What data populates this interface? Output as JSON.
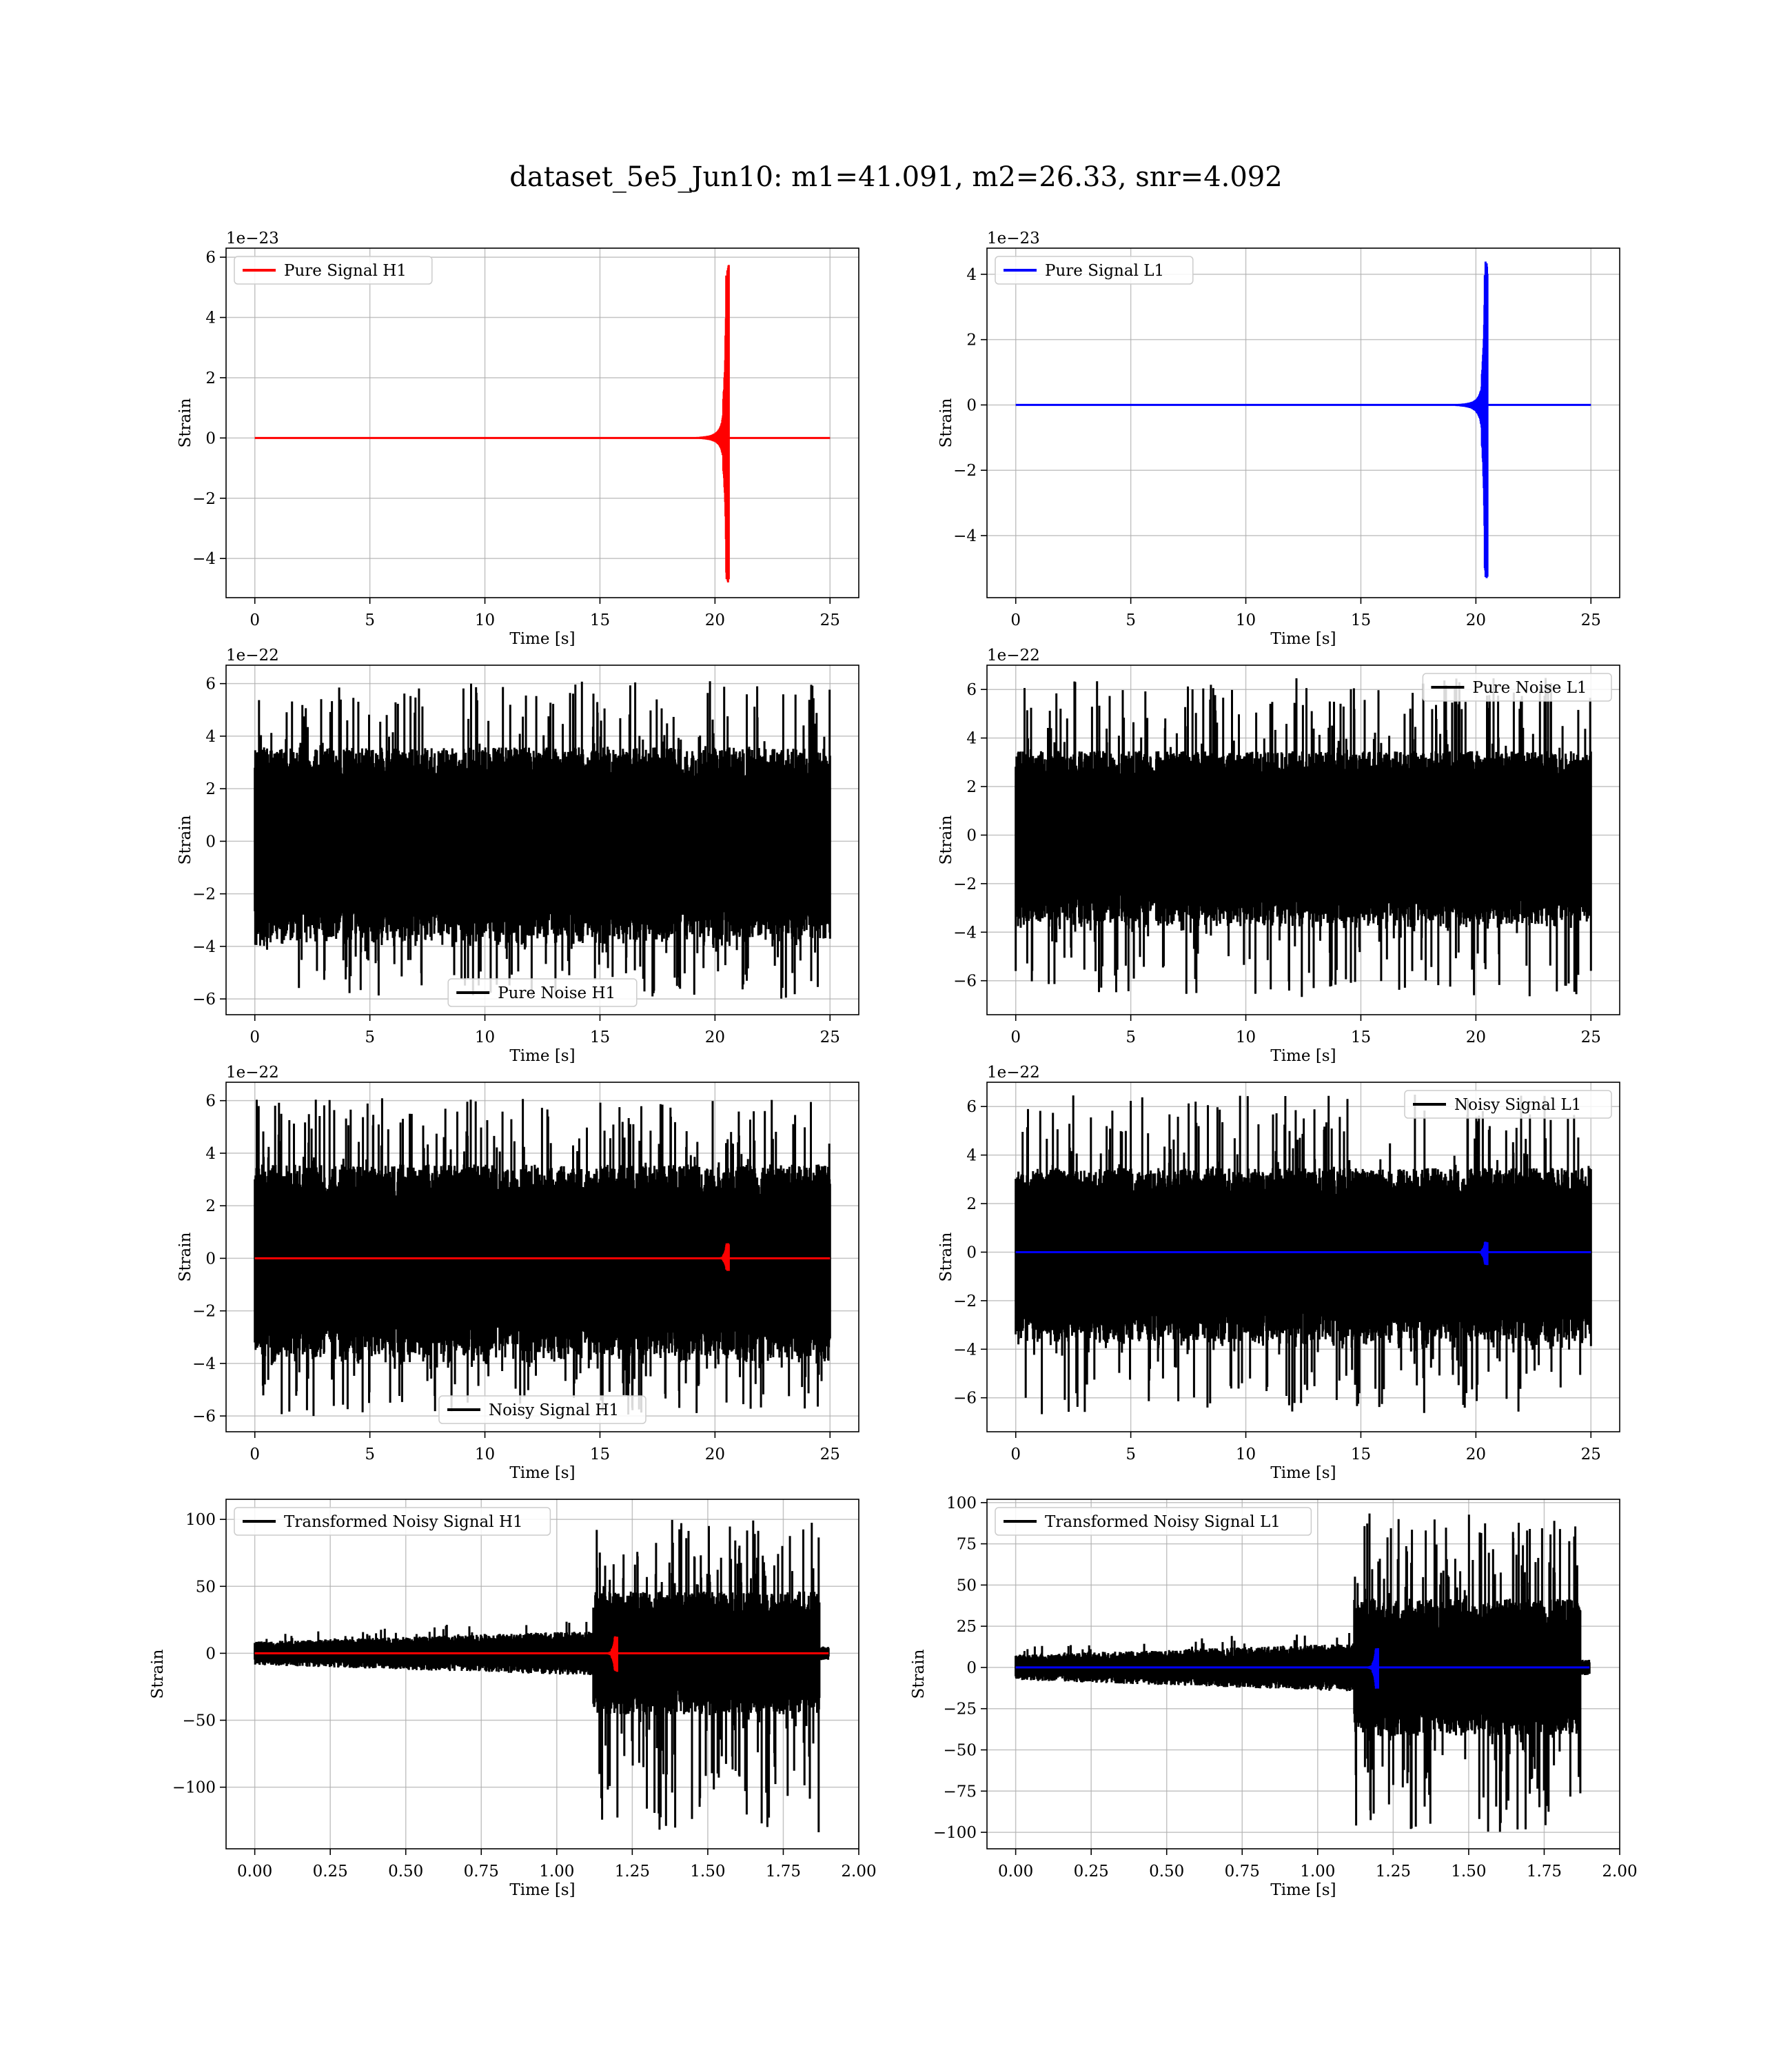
{
  "figure": {
    "title": "dataset_5e5_Jun10: m1=41.091, m2=26.33, snr=4.092"
  },
  "colors": {
    "h1_signal": "#ff0000",
    "l1_signal": "#0000ff",
    "noise": "#000000",
    "grid": "#b0b0b0"
  },
  "chart_data": [
    {
      "id": "h1-pure-signal",
      "type": "line",
      "ylabel": "Strain",
      "xlabel": "Time [s]",
      "offset_text": "1e−23",
      "xlim": [
        -1.25,
        26.25
      ],
      "ylim": [
        -5.3,
        6.3
      ],
      "xticks": [
        0,
        5,
        10,
        15,
        20,
        25
      ],
      "xtick_labels": [
        "0",
        "5",
        "10",
        "15",
        "20",
        "25"
      ],
      "yticks": [
        -4,
        -2,
        0,
        2,
        4,
        6
      ],
      "ytick_labels": [
        "−4",
        "−2",
        "0",
        "2",
        "4",
        "6"
      ],
      "grid": true,
      "legend_position": "upper left",
      "series": [
        {
          "name": "Pure Signal H1",
          "kind": "chirp",
          "color": "#ff0000",
          "x_range": [
            0,
            25
          ],
          "merger": 20.6,
          "envelope_peak": 5.8,
          "envelope_min": -4.8
        }
      ]
    },
    {
      "id": "l1-pure-signal",
      "type": "line",
      "ylabel": "Strain",
      "xlabel": "Time [s]",
      "offset_text": "1e−23",
      "xlim": [
        -1.25,
        26.25
      ],
      "ylim": [
        -5.9,
        4.8
      ],
      "xticks": [
        0,
        5,
        10,
        15,
        20,
        25
      ],
      "xtick_labels": [
        "0",
        "5",
        "10",
        "15",
        "20",
        "25"
      ],
      "yticks": [
        -4,
        -2,
        0,
        2,
        4
      ],
      "ytick_labels": [
        "−4",
        "−2",
        "0",
        "2",
        "4"
      ],
      "grid": true,
      "legend_position": "upper left",
      "series": [
        {
          "name": "Pure Signal L1",
          "kind": "chirp",
          "color": "#0000ff",
          "x_range": [
            0,
            25
          ],
          "merger": 20.5,
          "envelope_peak": 4.4,
          "envelope_min": -5.4
        }
      ]
    },
    {
      "id": "h1-pure-noise",
      "type": "line",
      "ylabel": "Strain",
      "xlabel": "Time [s]",
      "offset_text": "1e−22",
      "xlim": [
        -1.25,
        26.25
      ],
      "ylim": [
        -6.6,
        6.7
      ],
      "xticks": [
        0,
        5,
        10,
        15,
        20,
        25
      ],
      "xtick_labels": [
        "0",
        "5",
        "10",
        "15",
        "20",
        "25"
      ],
      "yticks": [
        -6,
        -4,
        -2,
        0,
        2,
        4,
        6
      ],
      "ytick_labels": [
        "−6",
        "−4",
        "−2",
        "0",
        "2",
        "4",
        "6"
      ],
      "grid": true,
      "legend_position": "lower center",
      "series": [
        {
          "name": "Pure Noise H1",
          "kind": "noise",
          "color": "#000000",
          "x_range": [
            0,
            25
          ],
          "core": 3.4,
          "spike_max": 6.1,
          "spike_min": -6.0
        }
      ]
    },
    {
      "id": "l1-pure-noise",
      "type": "line",
      "ylabel": "Strain",
      "xlabel": "Time [s]",
      "offset_text": "1e−22",
      "xlim": [
        -1.25,
        26.25
      ],
      "ylim": [
        -7.4,
        7.0
      ],
      "xticks": [
        0,
        5,
        10,
        15,
        20,
        25
      ],
      "xtick_labels": [
        "0",
        "5",
        "10",
        "15",
        "20",
        "25"
      ],
      "yticks": [
        -6,
        -4,
        -2,
        0,
        2,
        4,
        6
      ],
      "ytick_labels": [
        "−6",
        "−4",
        "−2",
        "0",
        "2",
        "4",
        "6"
      ],
      "grid": true,
      "legend_position": "upper right",
      "series": [
        {
          "name": "Pure Noise L1",
          "kind": "noise",
          "color": "#000000",
          "x_range": [
            0,
            25
          ],
          "core": 3.3,
          "spike_max": 6.5,
          "spike_min": -6.7
        }
      ]
    },
    {
      "id": "h1-noisy-signal",
      "type": "line",
      "ylabel": "Strain",
      "xlabel": "Time [s]",
      "offset_text": "1e−22",
      "xlim": [
        -1.25,
        26.25
      ],
      "ylim": [
        -6.6,
        6.7
      ],
      "xticks": [
        0,
        5,
        10,
        15,
        20,
        25
      ],
      "xtick_labels": [
        "0",
        "5",
        "10",
        "15",
        "20",
        "25"
      ],
      "yticks": [
        -6,
        -4,
        -2,
        0,
        2,
        4,
        6
      ],
      "ytick_labels": [
        "−6",
        "−4",
        "−2",
        "0",
        "2",
        "4",
        "6"
      ],
      "grid": true,
      "legend_position": "lower center",
      "series": [
        {
          "name": "Noisy Signal H1",
          "kind": "noise",
          "color": "#000000",
          "x_range": [
            0,
            25
          ],
          "core": 3.4,
          "spike_max": 6.1,
          "spike_min": -6.0
        },
        {
          "name": "",
          "kind": "chirp",
          "color": "#ff0000",
          "x_range": [
            0,
            25
          ],
          "merger": 20.6,
          "envelope_peak": 0.58,
          "envelope_min": -0.48
        }
      ]
    },
    {
      "id": "l1-noisy-signal",
      "type": "line",
      "ylabel": "Strain",
      "xlabel": "Time [s]",
      "offset_text": "1e−22",
      "xlim": [
        -1.25,
        26.25
      ],
      "ylim": [
        -7.4,
        7.0
      ],
      "xticks": [
        0,
        5,
        10,
        15,
        20,
        25
      ],
      "xtick_labels": [
        "0",
        "5",
        "10",
        "15",
        "20",
        "25"
      ],
      "yticks": [
        -6,
        -4,
        -2,
        0,
        2,
        4,
        6
      ],
      "ytick_labels": [
        "−6",
        "−4",
        "−2",
        "0",
        "2",
        "4",
        "6"
      ],
      "grid": true,
      "legend_position": "upper right",
      "series": [
        {
          "name": "Noisy Signal L1",
          "kind": "noise",
          "color": "#000000",
          "x_range": [
            0,
            25
          ],
          "core": 3.3,
          "spike_max": 6.5,
          "spike_min": -6.7
        },
        {
          "name": "",
          "kind": "chirp",
          "color": "#0000ff",
          "x_range": [
            0,
            25
          ],
          "merger": 20.5,
          "envelope_peak": 0.44,
          "envelope_min": -0.54
        }
      ]
    },
    {
      "id": "h1-transformed",
      "type": "line",
      "ylabel": "Strain",
      "xlabel": "Time [s]",
      "offset_text": "",
      "xlim": [
        -0.095,
        2.0
      ],
      "ylim": [
        -146,
        115
      ],
      "xticks": [
        0,
        0.25,
        0.5,
        0.75,
        1.0,
        1.25,
        1.5,
        1.75,
        2.0
      ],
      "xtick_labels": [
        "0.00",
        "0.25",
        "0.50",
        "0.75",
        "1.00",
        "1.25",
        "1.50",
        "1.75",
        "2.00"
      ],
      "yticks": [
        -100,
        -50,
        0,
        50,
        100
      ],
      "ytick_labels": [
        "−100",
        "−50",
        "0",
        "50",
        "100"
      ],
      "grid": true,
      "legend_position": "upper left",
      "series": [
        {
          "name": "Transformed Noisy Signal H1",
          "kind": "whitened",
          "color": "#000000",
          "x_range": [
            0,
            1.9
          ],
          "step": 1.12,
          "end": 1.87,
          "pre_core": 8,
          "post_core": 42,
          "spike_max": 100,
          "spike_min": -135
        },
        {
          "name": "",
          "kind": "chirp",
          "color": "#ff0000",
          "x_range": [
            0,
            1.9
          ],
          "merger": 1.2,
          "envelope_peak": 13,
          "envelope_min": -14
        }
      ]
    },
    {
      "id": "l1-transformed",
      "type": "line",
      "ylabel": "Strain",
      "xlabel": "Time [s]",
      "offset_text": "",
      "xlim": [
        -0.095,
        2.0
      ],
      "ylim": [
        -110,
        102
      ],
      "xticks": [
        0,
        0.25,
        0.5,
        0.75,
        1.0,
        1.25,
        1.5,
        1.75,
        2.0
      ],
      "xtick_labels": [
        "0.00",
        "0.25",
        "0.50",
        "0.75",
        "1.00",
        "1.25",
        "1.50",
        "1.75",
        "2.00"
      ],
      "yticks": [
        -100,
        -75,
        -50,
        -25,
        0,
        25,
        50,
        75,
        100
      ],
      "ytick_labels": [
        "−100",
        "−75",
        "−50",
        "−25",
        "0",
        "25",
        "50",
        "75",
        "100"
      ],
      "grid": true,
      "legend_position": "upper left",
      "series": [
        {
          "name": "Transformed Noisy Signal L1",
          "kind": "whitened",
          "color": "#000000",
          "x_range": [
            0,
            1.9
          ],
          "step": 1.12,
          "end": 1.87,
          "pre_core": 7,
          "post_core": 38,
          "spike_max": 95,
          "spike_min": -100
        },
        {
          "name": "",
          "kind": "chirp",
          "color": "#0000ff",
          "x_range": [
            0,
            1.9
          ],
          "merger": 1.2,
          "envelope_peak": 12,
          "envelope_min": -13
        }
      ]
    }
  ]
}
